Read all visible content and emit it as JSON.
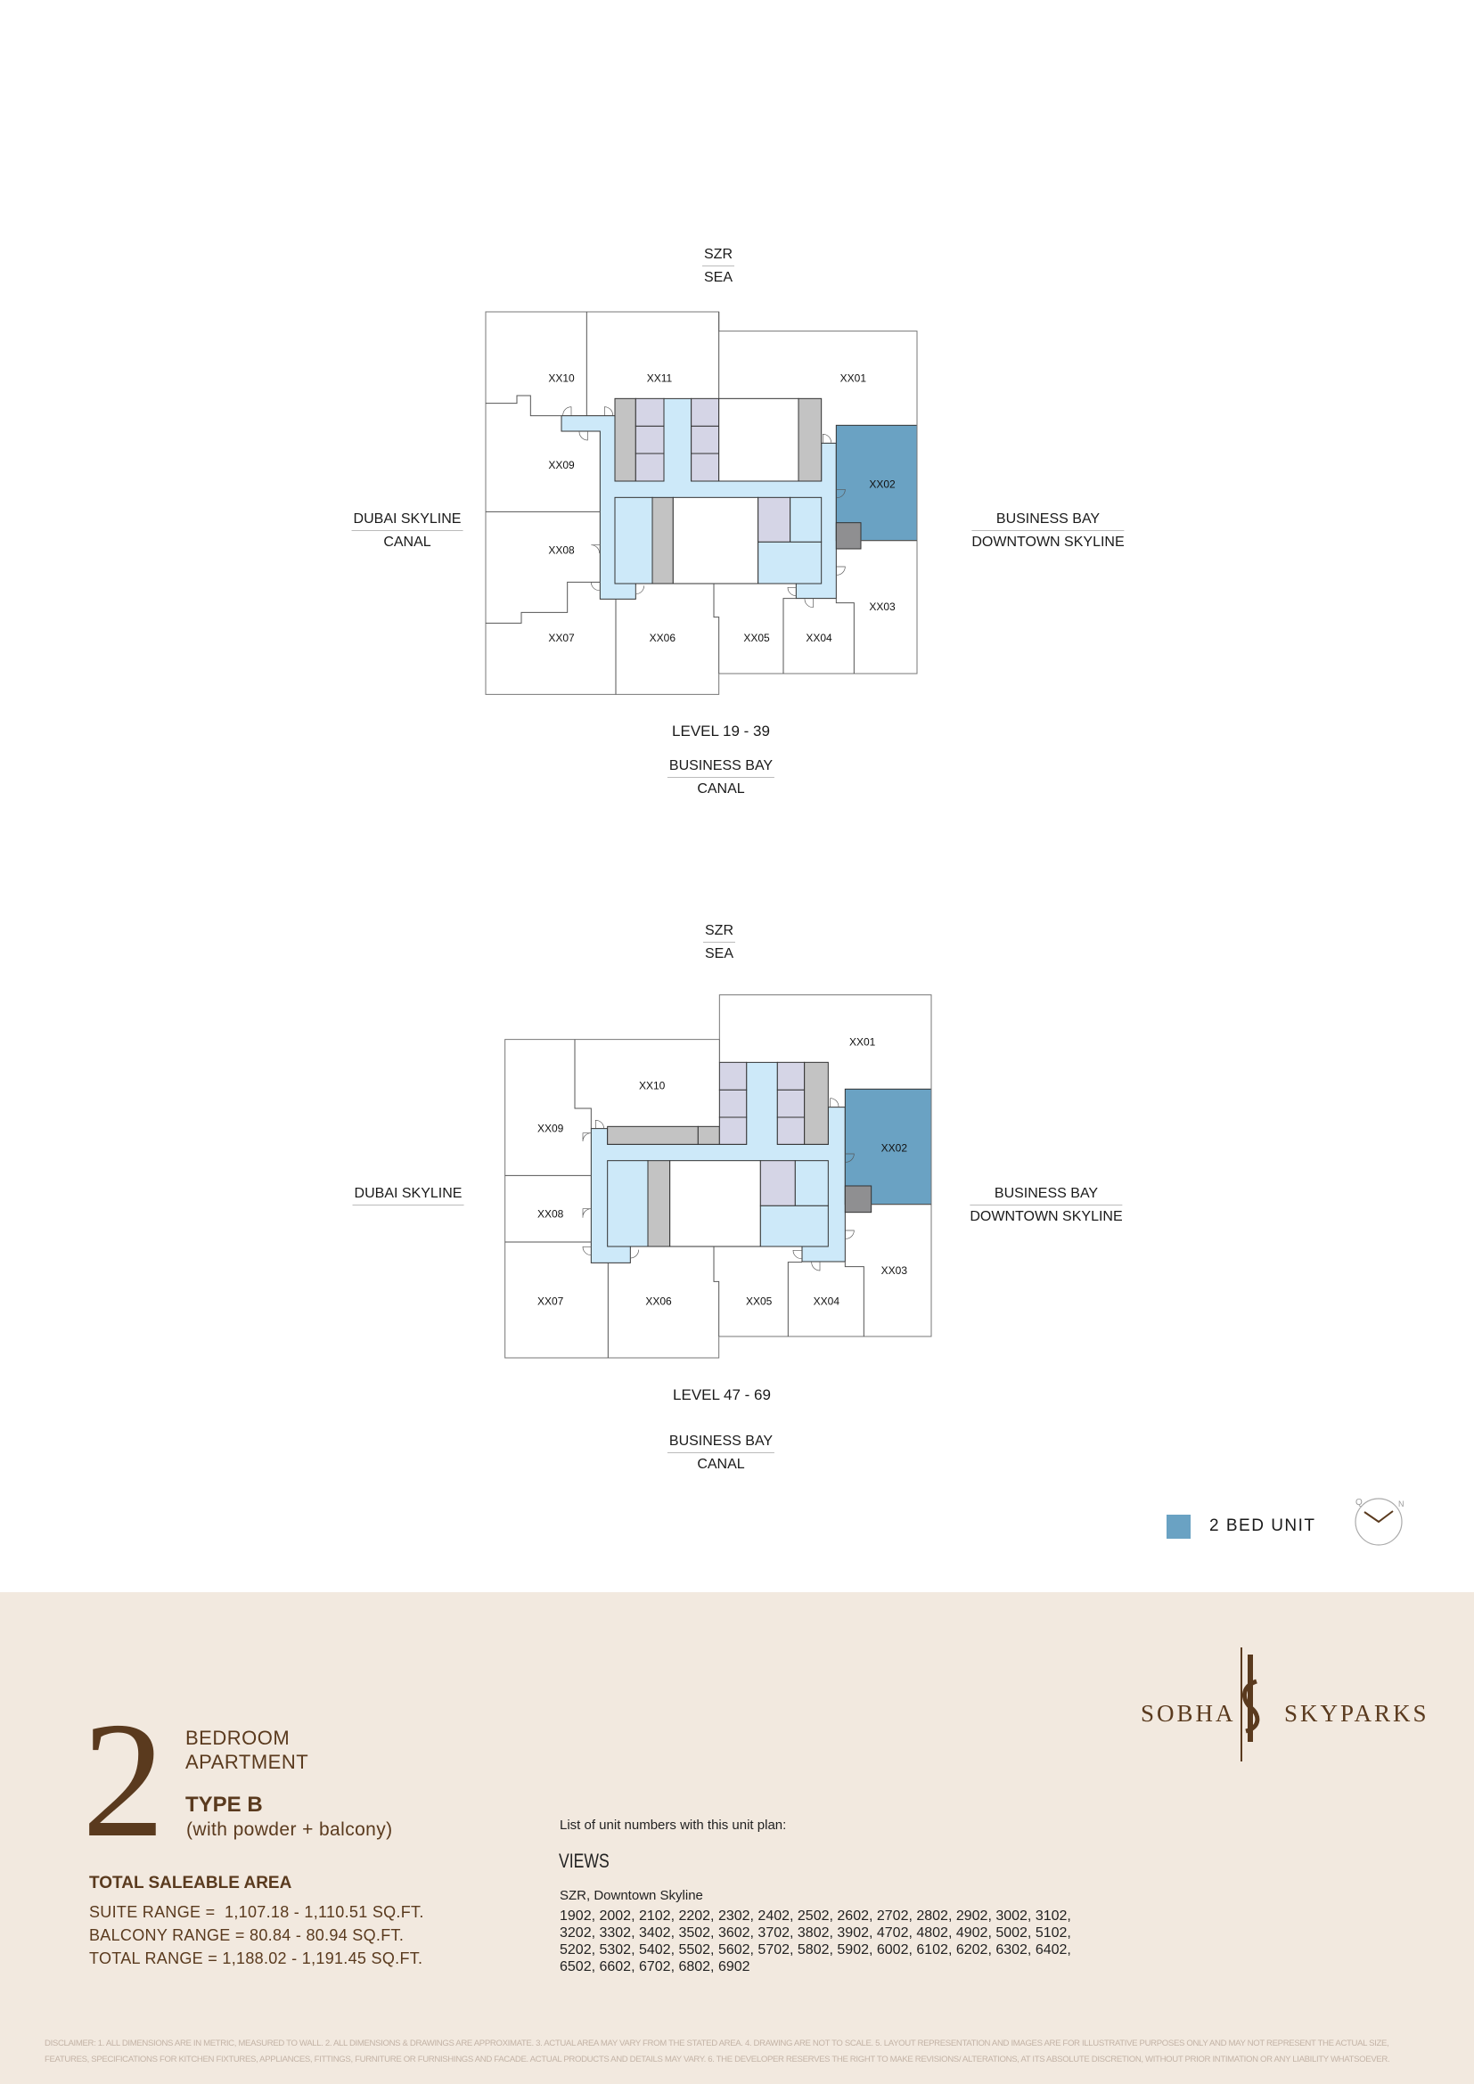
{
  "plans": [
    {
      "top_view": [
        "SZR",
        "SEA"
      ],
      "left_view": [
        "DUBAI SKYLINE",
        "CANAL"
      ],
      "right_view": [
        "BUSINESS BAY",
        "DOWNTOWN SKYLINE"
      ],
      "bottom_view": [
        "BUSINESS BAY",
        "CANAL"
      ],
      "level": "LEVEL 19 - 39",
      "units": [
        "XX10",
        "XX11",
        "XX01",
        "XX09",
        "XX02",
        "XX08",
        "XX03",
        "XX07",
        "XX06",
        "XX05",
        "XX04"
      ],
      "highlighted_unit": "XX02"
    },
    {
      "top_view": [
        "SZR",
        "SEA"
      ],
      "left_view": [
        "DUBAI SKYLINE"
      ],
      "right_view": [
        "BUSINESS BAY",
        "DOWNTOWN SKYLINE"
      ],
      "bottom_view": [
        "BUSINESS BAY",
        "CANAL"
      ],
      "level": "LEVEL 47 - 69",
      "units": [
        "XX01",
        "XX10",
        "XX09",
        "XX02",
        "XX08",
        "XX03",
        "XX07",
        "XX06",
        "XX05",
        "XX04"
      ],
      "highlighted_unit": "XX02"
    }
  ],
  "legend": {
    "label": "2 BED UNIT",
    "color": "#6aa2c3"
  },
  "compass": {
    "icon": "compass-north-icon",
    "letters": [
      "Q",
      "N"
    ]
  },
  "colors": {
    "corridor": "#cde9f9",
    "core_gray": "#c3c3c3",
    "core_purple": "#d5d5e6",
    "dark_gray": "#8f8f91",
    "band": "#f2e9df",
    "brand_brown": "#5a3a1e"
  },
  "unit_type": {
    "number": "2",
    "line1": "BEDROOM",
    "line2": "APARTMENT",
    "type": "TYPE B",
    "subtype": "(with powder + balcony)"
  },
  "area": {
    "title": "TOTAL SALEABLE AREA",
    "suite": "SUITE RANGE =  1,107.18 - 1,110.51 SQ.FT.",
    "balcony": "BALCONY RANGE = 80.84 - 80.94 SQ.FT.",
    "total": "TOTAL RANGE = 1,188.02 - 1,191.45 SQ.FT."
  },
  "units_list": {
    "intro": "List of unit numbers with this unit plan:",
    "views_title": "VIEWS",
    "view_name": "SZR, Downtown Skyline",
    "lines": [
      "1902, 2002, 2102, 2202, 2302, 2402, 2502, 2602, 2702, 2802, 2902, 3002, 3102,",
      "3202, 3302, 3402, 3502, 3602, 3702, 3802, 3902, 4702, 4802, 4902, 5002, 5102,",
      "5202, 5302, 5402, 5502, 5602, 5702, 5802, 5902, 6002, 6102, 6202, 6302, 6402,",
      "6502, 6602, 6702, 6802, 6902"
    ]
  },
  "logo": {
    "left": "SOBHA",
    "right": "SKYPARKS"
  },
  "disclaimer": [
    "DISCLAIMER: 1. ALL DIMENSIONS ARE IN METRIC, MEASURED TO WALL. 2. ALL DIMENSIONS & DRAWINGS ARE APPROXIMATE. 3. ACTUAL AREA MAY VARY FROM THE STATED AREA. 4. DRAWING ARE NOT TO SCALE. 5. LAYOUT REPRESENTATION AND IMAGES ARE FOR ILLUSTRATIVE PURPOSES ONLY AND MAY NOT REPRESENT THE ACTUAL SIZE,",
    "FEATURES, SPECIFICATIONS FOR KITCHEN FIXTURES, APPLIANCES, FITTINGS, FURNITURE OR FURNISHINGS AND FACADE. ACTUAL PRODUCTS AND DETAILS MAY VARY. 6. THE DEVELOPER RESERVES THE RIGHT TO MAKE REVISIONS/ ALTERATIONS, AT ITS ABSOLUTE DISCRETION, WITHOUT PRIOR INTIMATION OR ANY LIABILITY WHATSOEVER."
  ]
}
